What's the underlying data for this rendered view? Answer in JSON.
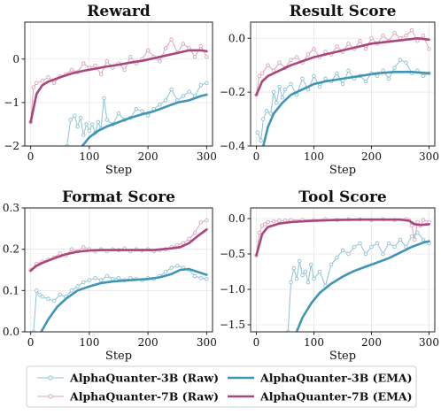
{
  "colors": {
    "raw3b": "#8ec2d4",
    "raw7b": "#dba3bd",
    "ema3b": "#3f95b5",
    "ema7b": "#a8467d"
  },
  "legend": [
    {
      "key": "raw3b",
      "label": "AlphaQuanter-3B (Raw)",
      "style": "raw"
    },
    {
      "key": "ema3b",
      "label": "AlphaQuanter-3B (EMA)",
      "style": "ema"
    },
    {
      "key": "raw7b",
      "label": "AlphaQuanter-7B (Raw)",
      "style": "raw"
    },
    {
      "key": "ema7b",
      "label": "AlphaQuanter-7B (EMA)",
      "style": "ema"
    }
  ],
  "chart_data": [
    {
      "type": "line",
      "title": "Reward",
      "xlabel": "Step",
      "ylabel": "",
      "xlim": [
        -10,
        310
      ],
      "ylim": [
        -2.0,
        0.85
      ],
      "xticks": [
        0,
        100,
        200,
        300
      ],
      "yticks": [
        -2,
        -1,
        0
      ],
      "ytick_labels": [
        "−2",
        "−1",
        "0"
      ],
      "grid": true,
      "series": [
        {
          "key": "raw7b",
          "kind": "raw",
          "x": [
            0,
            5,
            10,
            20,
            30,
            40,
            50,
            60,
            70,
            80,
            90,
            100,
            110,
            120,
            130,
            140,
            150,
            160,
            170,
            180,
            190,
            200,
            210,
            220,
            230,
            240,
            250,
            260,
            270,
            280,
            290,
            300
          ],
          "y": [
            -1.45,
            -0.65,
            -0.55,
            -0.5,
            -0.42,
            -0.55,
            -0.4,
            -0.35,
            -0.25,
            -0.3,
            -0.1,
            -0.2,
            -0.15,
            -0.35,
            -0.05,
            -0.2,
            -0.1,
            -0.25,
            0.05,
            -0.1,
            0.0,
            0.2,
            0.05,
            -0.05,
            0.25,
            0.45,
            0.15,
            0.35,
            0.25,
            0.05,
            0.3,
            0.05
          ]
        },
        {
          "key": "ema7b",
          "kind": "ema",
          "x": [
            0,
            10,
            20,
            30,
            50,
            70,
            90,
            110,
            130,
            150,
            170,
            190,
            210,
            230,
            250,
            270,
            290,
            300
          ],
          "y": [
            -1.45,
            -0.8,
            -0.6,
            -0.52,
            -0.42,
            -0.33,
            -0.27,
            -0.22,
            -0.17,
            -0.13,
            -0.08,
            -0.04,
            0.02,
            0.08,
            0.14,
            0.2,
            0.2,
            0.18
          ]
        },
        {
          "key": "raw3b",
          "kind": "raw",
          "x": [
            62,
            68,
            75,
            80,
            85,
            90,
            95,
            100,
            105,
            110,
            115,
            120,
            125,
            130,
            140,
            150,
            160,
            170,
            180,
            190,
            200,
            210,
            220,
            230,
            240,
            250,
            260,
            270,
            280,
            290,
            300
          ],
          "y": [
            -2.0,
            -1.4,
            -1.3,
            -1.55,
            -1.35,
            -1.75,
            -1.5,
            -1.65,
            -1.5,
            -1.7,
            -1.45,
            -1.6,
            -0.9,
            -1.4,
            -1.5,
            -1.25,
            -1.4,
            -1.35,
            -1.15,
            -1.2,
            -1.3,
            -1.15,
            -1.05,
            -0.95,
            -0.7,
            -0.95,
            -0.85,
            -0.75,
            -0.85,
            -0.6,
            -0.55
          ]
        },
        {
          "key": "ema3b",
          "kind": "ema",
          "x": [
            88,
            100,
            115,
            130,
            150,
            170,
            190,
            210,
            230,
            250,
            270,
            290,
            300
          ],
          "y": [
            -2.0,
            -1.8,
            -1.65,
            -1.55,
            -1.45,
            -1.35,
            -1.27,
            -1.2,
            -1.1,
            -1.0,
            -0.95,
            -0.85,
            -0.82
          ]
        }
      ]
    },
    {
      "type": "line",
      "title": "Result Score",
      "xlabel": "Step",
      "ylabel": "",
      "xlim": [
        -10,
        310
      ],
      "ylim": [
        -0.4,
        0.06
      ],
      "xticks": [
        0,
        100,
        200,
        300
      ],
      "yticks": [
        -0.4,
        -0.2,
        0.0
      ],
      "ytick_labels": [
        "−0.4",
        "−0.2",
        "0.0"
      ],
      "grid": true,
      "series": [
        {
          "key": "raw7b",
          "kind": "raw",
          "x": [
            0,
            5,
            10,
            20,
            30,
            40,
            50,
            60,
            70,
            80,
            90,
            100,
            110,
            120,
            130,
            140,
            150,
            160,
            170,
            180,
            190,
            200,
            210,
            220,
            230,
            240,
            250,
            260,
            270,
            280,
            290,
            300
          ],
          "y": [
            -0.21,
            -0.14,
            -0.13,
            -0.1,
            -0.12,
            -0.09,
            -0.11,
            -0.08,
            -0.07,
            -0.09,
            -0.06,
            -0.04,
            -0.07,
            -0.05,
            -0.06,
            -0.03,
            -0.05,
            -0.02,
            -0.04,
            -0.01,
            -0.04,
            0.0,
            -0.02,
            0.01,
            -0.01,
            0.02,
            0.0,
            0.01,
            0.03,
            -0.01,
            0.01,
            -0.04
          ]
        },
        {
          "key": "ema7b",
          "kind": "ema",
          "x": [
            0,
            10,
            20,
            40,
            60,
            80,
            100,
            120,
            140,
            160,
            180,
            200,
            220,
            240,
            260,
            280,
            300
          ],
          "y": [
            -0.21,
            -0.16,
            -0.14,
            -0.12,
            -0.1,
            -0.085,
            -0.07,
            -0.06,
            -0.05,
            -0.04,
            -0.03,
            -0.02,
            -0.015,
            -0.01,
            -0.005,
            0.0,
            -0.005
          ]
        },
        {
          "key": "raw3b",
          "kind": "raw",
          "x": [
            2,
            8,
            12,
            18,
            25,
            30,
            35,
            40,
            45,
            50,
            60,
            70,
            80,
            90,
            100,
            110,
            120,
            130,
            140,
            150,
            160,
            170,
            180,
            190,
            200,
            210,
            220,
            230,
            240,
            250,
            260,
            270,
            280,
            290,
            300
          ],
          "y": [
            -0.35,
            -0.38,
            -0.3,
            -0.27,
            -0.28,
            -0.2,
            -0.24,
            -0.18,
            -0.22,
            -0.19,
            -0.17,
            -0.21,
            -0.15,
            -0.19,
            -0.14,
            -0.18,
            -0.15,
            -0.16,
            -0.13,
            -0.17,
            -0.12,
            -0.15,
            -0.14,
            -0.16,
            -0.13,
            -0.14,
            -0.12,
            -0.15,
            -0.11,
            -0.08,
            -0.09,
            -0.13,
            -0.12,
            -0.14,
            -0.13
          ]
        },
        {
          "key": "ema3b",
          "kind": "ema",
          "x": [
            12,
            20,
            30,
            45,
            60,
            80,
            100,
            120,
            150,
            180,
            210,
            240,
            270,
            300
          ],
          "y": [
            -0.4,
            -0.33,
            -0.28,
            -0.24,
            -0.21,
            -0.19,
            -0.17,
            -0.16,
            -0.15,
            -0.14,
            -0.13,
            -0.125,
            -0.125,
            -0.13
          ]
        }
      ]
    },
    {
      "type": "line",
      "title": "Format Score",
      "xlabel": "Step",
      "ylabel": "",
      "xlim": [
        -10,
        310
      ],
      "ylim": [
        0.0,
        0.3
      ],
      "xticks": [
        0,
        100,
        200,
        300
      ],
      "yticks": [
        0.0,
        0.1,
        0.2,
        0.3
      ],
      "ytick_labels": [
        "0.0",
        "0.1",
        "0.2",
        "0.3"
      ],
      "grid": true,
      "series": [
        {
          "key": "raw7b",
          "kind": "raw",
          "x": [
            0,
            10,
            20,
            30,
            40,
            50,
            60,
            70,
            80,
            90,
            100,
            110,
            120,
            130,
            140,
            150,
            160,
            170,
            180,
            190,
            200,
            210,
            220,
            230,
            240,
            250,
            260,
            270,
            280,
            290,
            300
          ],
          "y": [
            0.15,
            0.165,
            0.17,
            0.175,
            0.18,
            0.19,
            0.185,
            0.2,
            0.195,
            0.205,
            0.2,
            0.195,
            0.2,
            0.195,
            0.2,
            0.198,
            0.202,
            0.195,
            0.2,
            0.197,
            0.2,
            0.195,
            0.198,
            0.2,
            0.205,
            0.21,
            0.215,
            0.225,
            0.24,
            0.265,
            0.27
          ]
        },
        {
          "key": "ema7b",
          "kind": "ema",
          "x": [
            0,
            10,
            20,
            40,
            60,
            80,
            100,
            120,
            150,
            180,
            210,
            240,
            255,
            270,
            285,
            300
          ],
          "y": [
            0.148,
            0.16,
            0.167,
            0.178,
            0.188,
            0.194,
            0.197,
            0.198,
            0.198,
            0.198,
            0.198,
            0.202,
            0.205,
            0.215,
            0.232,
            0.248
          ]
        },
        {
          "key": "raw3b",
          "kind": "raw",
          "x": [
            5,
            10,
            15,
            20,
            30,
            40,
            50,
            60,
            70,
            80,
            90,
            100,
            110,
            120,
            130,
            140,
            150,
            160,
            170,
            180,
            190,
            200,
            210,
            220,
            230,
            240,
            250,
            260,
            270,
            280,
            290,
            300
          ],
          "y": [
            0.0,
            0.1,
            0.09,
            0.085,
            0.08,
            0.075,
            0.09,
            0.085,
            0.1,
            0.11,
            0.12,
            0.125,
            0.13,
            0.125,
            0.135,
            0.128,
            0.13,
            0.125,
            0.13,
            0.128,
            0.125,
            0.13,
            0.128,
            0.135,
            0.145,
            0.155,
            0.16,
            0.155,
            0.15,
            0.135,
            0.13,
            0.128
          ]
        },
        {
          "key": "ema3b",
          "kind": "ema",
          "x": [
            18,
            30,
            45,
            60,
            80,
            100,
            120,
            140,
            160,
            180,
            200,
            220,
            240,
            255,
            270,
            285,
            300
          ],
          "y": [
            0.0,
            0.03,
            0.06,
            0.08,
            0.1,
            0.11,
            0.118,
            0.122,
            0.124,
            0.126,
            0.128,
            0.132,
            0.14,
            0.15,
            0.152,
            0.145,
            0.138
          ]
        }
      ]
    },
    {
      "type": "line",
      "title": "Tool Score",
      "xlabel": "Step",
      "ylabel": "",
      "xlim": [
        -10,
        310
      ],
      "ylim": [
        -1.6,
        0.15
      ],
      "xticks": [
        0,
        100,
        200,
        300
      ],
      "yticks": [
        -1.5,
        -1.0,
        -0.5,
        0.0
      ],
      "ytick_labels": [
        "−1.5",
        "−1.0",
        "−0.5",
        "0.0"
      ],
      "grid": true,
      "series": [
        {
          "key": "raw7b",
          "kind": "raw",
          "x": [
            0,
            5,
            10,
            15,
            20,
            30,
            40,
            50,
            60,
            80,
            100,
            120,
            140,
            160,
            180,
            200,
            220,
            240,
            260,
            265,
            270,
            275,
            280,
            285,
            290,
            300
          ],
          "y": [
            -0.52,
            -0.2,
            -0.1,
            -0.08,
            -0.05,
            -0.04,
            -0.03,
            -0.03,
            -0.02,
            -0.02,
            -0.02,
            -0.01,
            -0.02,
            -0.01,
            -0.01,
            -0.02,
            -0.01,
            -0.02,
            -0.01,
            -0.02,
            -0.1,
            -0.3,
            -0.05,
            -0.1,
            -0.02,
            -0.05
          ]
        },
        {
          "key": "ema7b",
          "kind": "ema",
          "x": [
            0,
            10,
            20,
            40,
            60,
            80,
            100,
            140,
            180,
            220,
            250,
            265,
            275,
            285,
            300
          ],
          "y": [
            -0.52,
            -0.22,
            -0.12,
            -0.07,
            -0.05,
            -0.04,
            -0.03,
            -0.02,
            -0.015,
            -0.015,
            -0.015,
            -0.03,
            -0.08,
            -0.09,
            -0.08
          ]
        },
        {
          "key": "raw3b",
          "kind": "raw",
          "x": [
            55,
            60,
            65,
            70,
            75,
            80,
            85,
            90,
            95,
            100,
            110,
            120,
            130,
            140,
            150,
            160,
            170,
            180,
            190,
            200,
            210,
            220,
            230,
            240,
            250,
            260,
            270,
            280,
            290,
            300
          ],
          "y": [
            -1.6,
            -0.9,
            -0.7,
            -0.85,
            -0.6,
            -0.8,
            -0.75,
            -0.9,
            -0.65,
            -0.85,
            -0.75,
            -0.95,
            -0.65,
            -0.55,
            -0.45,
            -0.5,
            -0.4,
            -0.35,
            -0.5,
            -0.4,
            -0.35,
            -0.5,
            -0.35,
            -0.4,
            -0.3,
            -0.4,
            -0.25,
            -0.2,
            -0.3,
            -0.35
          ]
        },
        {
          "key": "ema3b",
          "kind": "ema",
          "x": [
            70,
            80,
            95,
            110,
            130,
            150,
            170,
            190,
            210,
            230,
            250,
            270,
            290,
            300
          ],
          "y": [
            -1.6,
            -1.4,
            -1.2,
            -1.05,
            -0.92,
            -0.82,
            -0.74,
            -0.68,
            -0.62,
            -0.56,
            -0.48,
            -0.4,
            -0.34,
            -0.32
          ]
        }
      ]
    }
  ]
}
